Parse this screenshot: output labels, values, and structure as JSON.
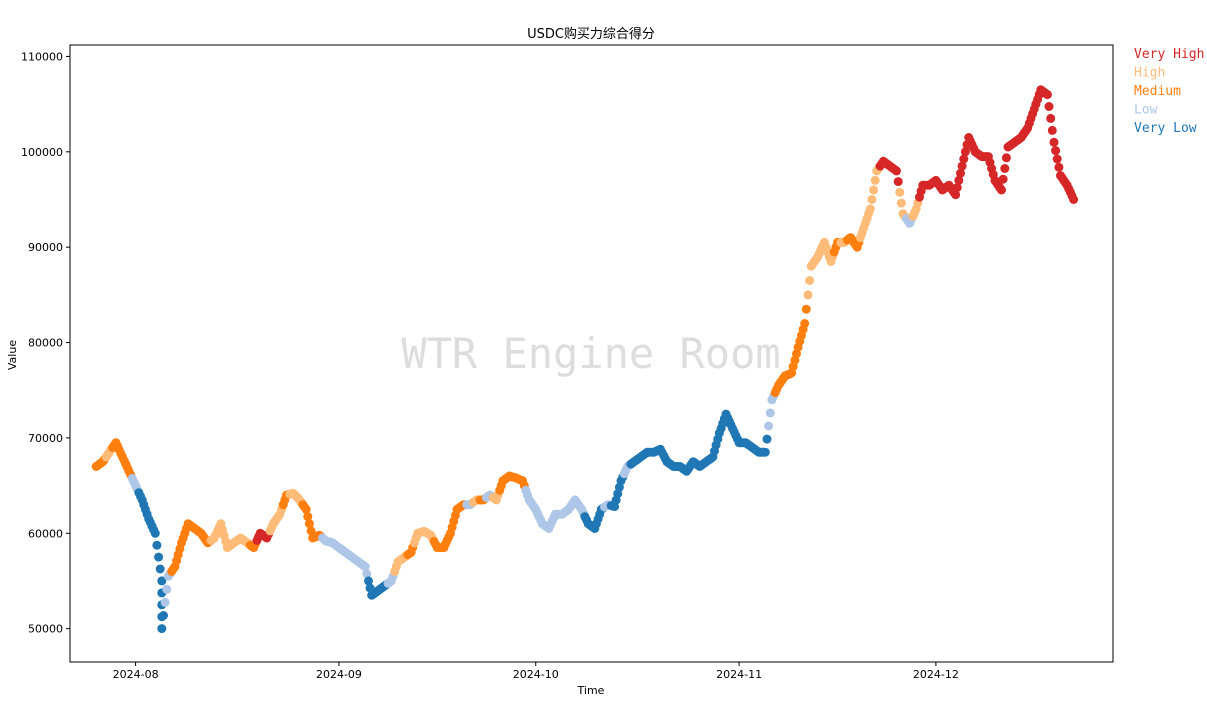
{
  "chart_data": {
    "type": "scatter",
    "title": "USDC购买力综合得分",
    "xlabel": "Time",
    "ylabel": "Value",
    "watermark": "WTR Engine Room",
    "xlim": [
      "2024-07-22",
      "2024-12-28"
    ],
    "ylim": [
      46500,
      111200
    ],
    "x_ticks": [
      "2024-08",
      "2024-09",
      "2024-10",
      "2024-11",
      "2024-12"
    ],
    "x_tick_dates": [
      "2024-08-01",
      "2024-09-01",
      "2024-10-01",
      "2024-11-01",
      "2024-12-01"
    ],
    "y_ticks": [
      50000,
      60000,
      70000,
      80000,
      90000,
      100000,
      110000
    ],
    "grid": false,
    "legend_position": "outside-top-right",
    "categories": [
      {
        "key": "VH",
        "label": "Very High",
        "color": "#d62728"
      },
      {
        "key": "H",
        "label": "High",
        "color": "#ffbb78"
      },
      {
        "key": "M",
        "label": "Medium",
        "color": "#ff7f0e"
      },
      {
        "key": "L",
        "label": "Low",
        "color": "#aec7e8"
      },
      {
        "key": "VL",
        "label": "Very Low",
        "color": "#1f77b4"
      }
    ],
    "points": [
      [
        "2024-07-26",
        67000,
        "M"
      ],
      [
        "2024-07-27",
        67500,
        "M"
      ],
      [
        "2024-07-28",
        68500,
        "H"
      ],
      [
        "2024-07-29",
        69500,
        "M"
      ],
      [
        "2024-07-30",
        68000,
        "M"
      ],
      [
        "2024-07-31",
        66500,
        "M"
      ],
      [
        "2024-08-01",
        65000,
        "L"
      ],
      [
        "2024-08-02",
        63500,
        "VL"
      ],
      [
        "2024-08-03",
        61500,
        "VL"
      ],
      [
        "2024-08-04",
        60000,
        "VL"
      ],
      [
        "2024-08-05",
        55000,
        "VL"
      ],
      [
        "2024-08-05",
        50000,
        "VL"
      ],
      [
        "2024-08-06",
        55500,
        "L"
      ],
      [
        "2024-08-07",
        56500,
        "M"
      ],
      [
        "2024-08-08",
        59000,
        "M"
      ],
      [
        "2024-08-09",
        61000,
        "M"
      ],
      [
        "2024-08-10",
        60500,
        "M"
      ],
      [
        "2024-08-11",
        60000,
        "M"
      ],
      [
        "2024-08-12",
        59000,
        "M"
      ],
      [
        "2024-08-13",
        59500,
        "H"
      ],
      [
        "2024-08-14",
        61000,
        "H"
      ],
      [
        "2024-08-15",
        58500,
        "H"
      ],
      [
        "2024-08-16",
        59000,
        "H"
      ],
      [
        "2024-08-17",
        59500,
        "H"
      ],
      [
        "2024-08-18",
        59000,
        "H"
      ],
      [
        "2024-08-19",
        58500,
        "M"
      ],
      [
        "2024-08-20",
        60000,
        "VH"
      ],
      [
        "2024-08-21",
        59500,
        "VH"
      ],
      [
        "2024-08-22",
        61000,
        "H"
      ],
      [
        "2024-08-23",
        62000,
        "H"
      ],
      [
        "2024-08-24",
        64000,
        "M"
      ],
      [
        "2024-08-25",
        64200,
        "H"
      ],
      [
        "2024-08-26",
        63500,
        "H"
      ],
      [
        "2024-08-27",
        62500,
        "M"
      ],
      [
        "2024-08-28",
        59500,
        "M"
      ],
      [
        "2024-08-29",
        59800,
        "M"
      ],
      [
        "2024-08-30",
        59200,
        "L"
      ],
      [
        "2024-08-31",
        59000,
        "L"
      ],
      [
        "2024-09-01",
        58500,
        "L"
      ],
      [
        "2024-09-02",
        58000,
        "L"
      ],
      [
        "2024-09-03",
        57500,
        "L"
      ],
      [
        "2024-09-04",
        57000,
        "L"
      ],
      [
        "2024-09-05",
        56500,
        "L"
      ],
      [
        "2024-09-06",
        53500,
        "VL"
      ],
      [
        "2024-09-07",
        54000,
        "VL"
      ],
      [
        "2024-09-08",
        54500,
        "VL"
      ],
      [
        "2024-09-09",
        55000,
        "L"
      ],
      [
        "2024-09-10",
        57000,
        "H"
      ],
      [
        "2024-09-11",
        57500,
        "H"
      ],
      [
        "2024-09-12",
        58000,
        "M"
      ],
      [
        "2024-09-13",
        60000,
        "H"
      ],
      [
        "2024-09-14",
        60200,
        "H"
      ],
      [
        "2024-09-15",
        59800,
        "H"
      ],
      [
        "2024-09-16",
        58500,
        "M"
      ],
      [
        "2024-09-17",
        58500,
        "M"
      ],
      [
        "2024-09-18",
        60000,
        "M"
      ],
      [
        "2024-09-19",
        62500,
        "M"
      ],
      [
        "2024-09-20",
        63000,
        "M"
      ],
      [
        "2024-09-21",
        63000,
        "L"
      ],
      [
        "2024-09-22",
        63500,
        "H"
      ],
      [
        "2024-09-23",
        63500,
        "M"
      ],
      [
        "2024-09-24",
        64000,
        "L"
      ],
      [
        "2024-09-25",
        63500,
        "H"
      ],
      [
        "2024-09-26",
        65500,
        "M"
      ],
      [
        "2024-09-27",
        66000,
        "M"
      ],
      [
        "2024-09-28",
        65800,
        "M"
      ],
      [
        "2024-09-29",
        65500,
        "M"
      ],
      [
        "2024-09-30",
        63500,
        "L"
      ],
      [
        "2024-10-01",
        62500,
        "L"
      ],
      [
        "2024-10-02",
        61000,
        "L"
      ],
      [
        "2024-10-03",
        60500,
        "L"
      ],
      [
        "2024-10-04",
        62000,
        "L"
      ],
      [
        "2024-10-05",
        62000,
        "L"
      ],
      [
        "2024-10-06",
        62500,
        "L"
      ],
      [
        "2024-10-07",
        63500,
        "L"
      ],
      [
        "2024-10-08",
        62500,
        "L"
      ],
      [
        "2024-10-09",
        61000,
        "VL"
      ],
      [
        "2024-10-10",
        60500,
        "VL"
      ],
      [
        "2024-10-11",
        62500,
        "VL"
      ],
      [
        "2024-10-12",
        63000,
        "L"
      ],
      [
        "2024-10-13",
        62800,
        "VL"
      ],
      [
        "2024-10-14",
        65500,
        "VL"
      ],
      [
        "2024-10-15",
        67000,
        "L"
      ],
      [
        "2024-10-16",
        67500,
        "VL"
      ],
      [
        "2024-10-17",
        68000,
        "VL"
      ],
      [
        "2024-10-18",
        68500,
        "VL"
      ],
      [
        "2024-10-19",
        68500,
        "VL"
      ],
      [
        "2024-10-20",
        68800,
        "VL"
      ],
      [
        "2024-10-21",
        67500,
        "VL"
      ],
      [
        "2024-10-22",
        67000,
        "VL"
      ],
      [
        "2024-10-23",
        67000,
        "VL"
      ],
      [
        "2024-10-24",
        66500,
        "VL"
      ],
      [
        "2024-10-25",
        67500,
        "VL"
      ],
      [
        "2024-10-26",
        67000,
        "VL"
      ],
      [
        "2024-10-27",
        67500,
        "VL"
      ],
      [
        "2024-10-28",
        68000,
        "VL"
      ],
      [
        "2024-10-29",
        70500,
        "VL"
      ],
      [
        "2024-10-30",
        72500,
        "VL"
      ],
      [
        "2024-10-31",
        71000,
        "VL"
      ],
      [
        "2024-11-01",
        69500,
        "VL"
      ],
      [
        "2024-11-02",
        69500,
        "VL"
      ],
      [
        "2024-11-03",
        69000,
        "VL"
      ],
      [
        "2024-11-04",
        68500,
        "VL"
      ],
      [
        "2024-11-05",
        68500,
        "VL"
      ],
      [
        "2024-11-06",
        74000,
        "L"
      ],
      [
        "2024-11-07",
        75500,
        "M"
      ],
      [
        "2024-11-08",
        76500,
        "M"
      ],
      [
        "2024-11-09",
        76800,
        "M"
      ],
      [
        "2024-11-10",
        79500,
        "M"
      ],
      [
        "2024-11-11",
        82000,
        "M"
      ],
      [
        "2024-11-12",
        88000,
        "H"
      ],
      [
        "2024-11-13",
        89000,
        "H"
      ],
      [
        "2024-11-14",
        90500,
        "H"
      ],
      [
        "2024-11-15",
        88500,
        "H"
      ],
      [
        "2024-11-16",
        90500,
        "M"
      ],
      [
        "2024-11-17",
        90500,
        "H"
      ],
      [
        "2024-11-18",
        91000,
        "M"
      ],
      [
        "2024-11-19",
        90000,
        "M"
      ],
      [
        "2024-11-20",
        92000,
        "H"
      ],
      [
        "2024-11-21",
        94000,
        "H"
      ],
      [
        "2024-11-22",
        98000,
        "H"
      ],
      [
        "2024-11-23",
        99000,
        "VH"
      ],
      [
        "2024-11-24",
        98500,
        "VH"
      ],
      [
        "2024-11-25",
        98000,
        "VH"
      ],
      [
        "2024-11-26",
        93500,
        "H"
      ],
      [
        "2024-11-27",
        92500,
        "L"
      ],
      [
        "2024-11-28",
        94000,
        "H"
      ],
      [
        "2024-11-29",
        96500,
        "VH"
      ],
      [
        "2024-11-30",
        96500,
        "VH"
      ],
      [
        "2024-12-01",
        97000,
        "VH"
      ],
      [
        "2024-12-02",
        96000,
        "VH"
      ],
      [
        "2024-12-03",
        96500,
        "VH"
      ],
      [
        "2024-12-04",
        95500,
        "VH"
      ],
      [
        "2024-12-05",
        98500,
        "VH"
      ],
      [
        "2024-12-06",
        101500,
        "VH"
      ],
      [
        "2024-12-07",
        100000,
        "VH"
      ],
      [
        "2024-12-08",
        99500,
        "VH"
      ],
      [
        "2024-12-09",
        99500,
        "VH"
      ],
      [
        "2024-12-10",
        97000,
        "VH"
      ],
      [
        "2024-12-11",
        96000,
        "VH"
      ],
      [
        "2024-12-12",
        100500,
        "VH"
      ],
      [
        "2024-12-13",
        101000,
        "VH"
      ],
      [
        "2024-12-14",
        101500,
        "VH"
      ],
      [
        "2024-12-15",
        102500,
        "VH"
      ],
      [
        "2024-12-16",
        104500,
        "VH"
      ],
      [
        "2024-12-17",
        106500,
        "VH"
      ],
      [
        "2024-12-18",
        106000,
        "VH"
      ],
      [
        "2024-12-19",
        101000,
        "VH"
      ],
      [
        "2024-12-20",
        97500,
        "VH"
      ],
      [
        "2024-12-21",
        96500,
        "VH"
      ],
      [
        "2024-12-22",
        95000,
        "VH"
      ]
    ]
  }
}
